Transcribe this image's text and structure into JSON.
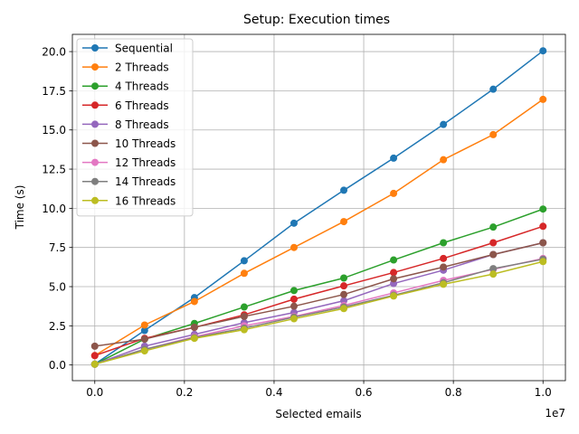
{
  "chart_data": {
    "type": "line",
    "title": "Setup: Execution times",
    "xlabel": "Selected emails",
    "ylabel": "Time (s)",
    "x_offset_label": "1e7",
    "x_scale": 10000000,
    "x": [
      0,
      1111111,
      2222222,
      3333333,
      4444444,
      5555556,
      6666667,
      7777778,
      8888889,
      10000000
    ],
    "xlim": [
      -500000,
      10500000
    ],
    "ylim": [
      -1.0,
      21.1
    ],
    "xticks": [
      0,
      2000000,
      4000000,
      6000000,
      8000000,
      10000000
    ],
    "xtick_labels": [
      "0.0",
      "0.2",
      "0.4",
      "0.6",
      "0.8",
      "1.0"
    ],
    "yticks": [
      0.0,
      2.5,
      5.0,
      7.5,
      10.0,
      12.5,
      15.0,
      17.5,
      20.0
    ],
    "ytick_labels": [
      "0.0",
      "2.5",
      "5.0",
      "7.5",
      "10.0",
      "12.5",
      "15.0",
      "17.5",
      "20.0"
    ],
    "grid": true,
    "legend_position": "top-left",
    "series": [
      {
        "name": "Sequential",
        "color": "#1f77b4",
        "values": [
          0.05,
          2.2,
          4.3,
          6.65,
          9.05,
          11.15,
          13.2,
          15.35,
          17.6,
          20.05
        ]
      },
      {
        "name": "2 Threads",
        "color": "#ff7f0e",
        "values": [
          0.6,
          2.55,
          4.05,
          5.85,
          7.5,
          9.15,
          10.95,
          13.1,
          14.7,
          16.95
        ]
      },
      {
        "name": "4 Threads",
        "color": "#2ca02c",
        "values": [
          0.05,
          1.65,
          2.65,
          3.7,
          4.75,
          5.55,
          6.7,
          7.8,
          8.8,
          9.95
        ]
      },
      {
        "name": "6 Threads",
        "color": "#d62728",
        "values": [
          0.6,
          1.7,
          2.4,
          3.2,
          4.2,
          5.05,
          5.9,
          6.8,
          7.8,
          8.85
        ]
      },
      {
        "name": "8 Threads",
        "color": "#9467bd",
        "values": [
          0.05,
          1.2,
          1.95,
          2.7,
          3.35,
          4.1,
          5.2,
          6.05,
          7.05,
          7.8
        ]
      },
      {
        "name": "10 Threads",
        "color": "#8c564b",
        "values": [
          1.2,
          1.65,
          2.4,
          3.1,
          3.75,
          4.5,
          5.5,
          6.25,
          7.05,
          7.8
        ]
      },
      {
        "name": "12 Threads",
        "color": "#e377c2",
        "values": [
          0.05,
          1.0,
          1.8,
          2.5,
          3.1,
          3.8,
          4.6,
          5.4,
          6.1,
          6.8
        ]
      },
      {
        "name": "14 Threads",
        "color": "#7f7f7f",
        "values": [
          0.05,
          1.0,
          1.75,
          2.35,
          3.05,
          3.7,
          4.45,
          5.25,
          6.15,
          6.75
        ]
      },
      {
        "name": "16 Threads",
        "color": "#bcbd22",
        "values": [
          0.05,
          0.9,
          1.7,
          2.25,
          2.95,
          3.6,
          4.4,
          5.15,
          5.8,
          6.6
        ]
      }
    ]
  }
}
